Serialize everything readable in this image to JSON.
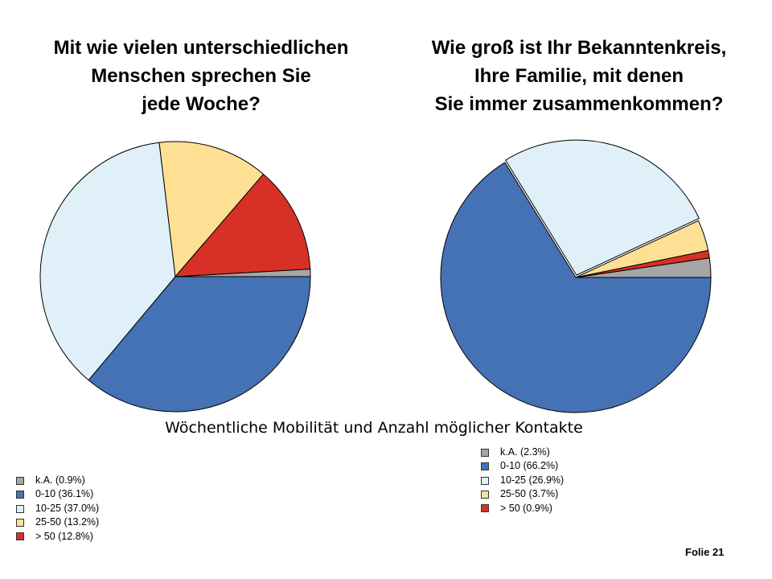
{
  "titles": {
    "left": [
      "Mit wie vielen unterschiedlichen",
      "Menschen sprechen Sie",
      "jede Woche?"
    ],
    "right": [
      "Wie groß ist Ihr Bekanntenkreis,",
      "Ihre Familie, mit denen",
      "Sie immer zusammenkommen?"
    ]
  },
  "subtitle": "Wöchentliche Mobilität und Anzahl möglicher Kontakte",
  "footer": "Folie 21",
  "chart_data": [
    {
      "type": "pie",
      "title": "Mit wie vielen unterschiedlichen Menschen sprechen Sie jede Woche?",
      "categories": [
        "k.A.",
        "0-10",
        "10-25",
        "25-50",
        "> 50"
      ],
      "values": [
        0.9,
        36.1,
        37.0,
        13.2,
        12.8
      ],
      "colors": [
        "#a6a6a6",
        "#4472b4",
        "#dff0f8",
        "#fde094",
        "#d73027"
      ],
      "legend_labels": [
        "k.A. (0.9%)",
        "0-10 (36.1%)",
        "10-25 (37.0%)",
        "25-50 (13.2%)",
        "> 50 (12.8%)"
      ],
      "legend_position": "bottom-left"
    },
    {
      "type": "pie",
      "title": "Wie groß ist Ihr Bekanntenkreis, Ihre Familie, mit denen Sie immer zusammenkommen?",
      "categories": [
        "k.A.",
        "0-10",
        "10-25",
        "25-50",
        "> 50"
      ],
      "values": [
        2.3,
        66.2,
        26.9,
        3.7,
        0.9
      ],
      "colors": [
        "#a6a6a6",
        "#4472b4",
        "#dff0f8",
        "#fde094",
        "#d73027"
      ],
      "legend_labels": [
        "k.A. (2.3%)",
        "0-10 (66.2%)",
        "10-25 (26.9%)",
        "25-50 (3.7%)",
        "> 50 (0.9%)"
      ],
      "legend_position": "bottom-right"
    }
  ]
}
